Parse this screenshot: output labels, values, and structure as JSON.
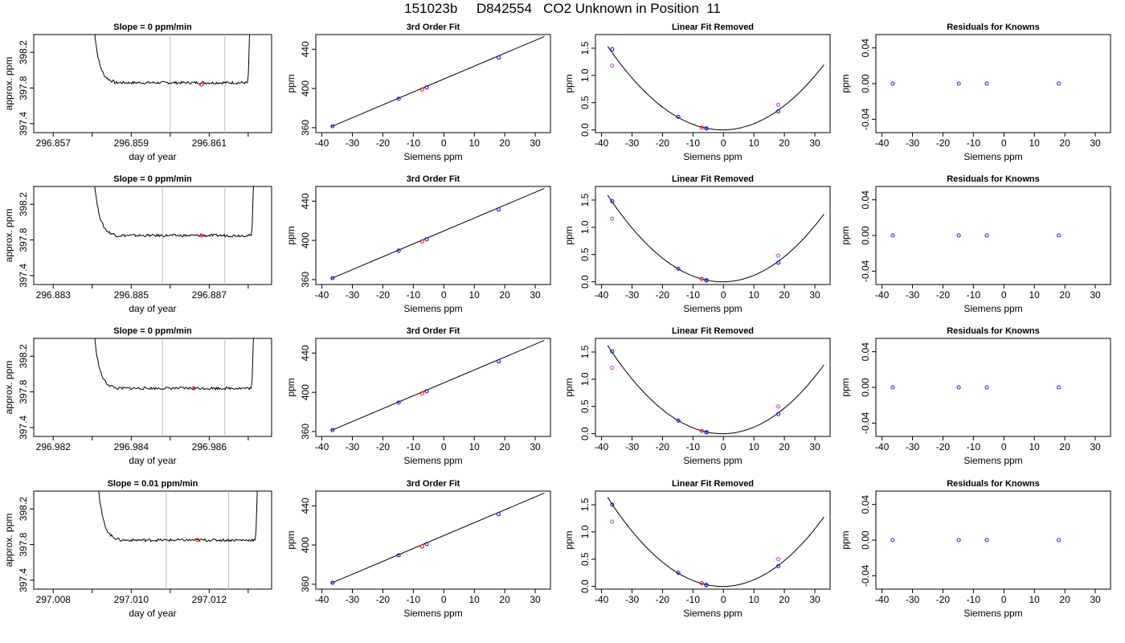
{
  "title": "151023b     D842554   CO2 Unknown in Position  11",
  "colors": {
    "known_point": "#0000ff",
    "unknown_point": "#ff0000",
    "raw_point": "#cc33cc",
    "vline": "#bbbbbb",
    "line": "#000000"
  },
  "rows": [
    {
      "trace": {
        "title": "Slope =  0  ppm/min",
        "xlabel": "day of year",
        "ylabel": "approx. ppm",
        "xlim": [
          296.8565,
          296.8626
        ],
        "ylim": [
          397.3,
          398.4
        ],
        "xticks": [
          "296.857",
          "296.859",
          "296.861"
        ],
        "xtick_values": [
          296.857,
          296.859,
          296.861
        ],
        "minor_xticks": [
          296.858,
          296.86,
          296.862
        ],
        "yticks": [
          "397.4",
          "397.8",
          "398.2"
        ],
        "ytick_values": [
          397.4,
          397.8,
          398.2
        ],
        "vlines": [
          296.86,
          296.8614
        ],
        "marker": {
          "x": 296.8608,
          "y": 397.84
        },
        "window": [
          296.858,
          296.8621
        ],
        "plateau": 397.86
      },
      "fit": {
        "title": "3rd Order Fit",
        "xlabel": "Siemens ppm",
        "ylabel": "ppm",
        "xlim": [
          -42,
          35
        ],
        "ylim": [
          355,
          455
        ],
        "xticks": [
          "-40",
          "-30",
          "-20",
          "-10",
          "0",
          "10",
          "20",
          "30"
        ],
        "xtick_values": [
          -40,
          -30,
          -20,
          -10,
          0,
          10,
          20,
          30
        ],
        "yticks": [
          "360",
          "400",
          "440"
        ],
        "ytick_values": [
          360,
          400,
          440
        ],
        "line": [
          [
            -37,
            361
          ],
          [
            33,
            453
          ]
        ],
        "knowns": [
          [
            -36.5,
            361.5
          ],
          [
            -14.8,
            389.5
          ],
          [
            -5.6,
            401
          ],
          [
            18,
            431.5
          ]
        ],
        "unknown": [
          -7.1,
          399
        ]
      },
      "resid": {
        "title": "Linear Fit Removed",
        "xlabel": "Siemens ppm",
        "ylabel": "ppm",
        "xlim": [
          -42,
          35
        ],
        "ylim": [
          -0.05,
          1.75
        ],
        "xticks": [
          "-40",
          "-30",
          "-20",
          "-10",
          "0",
          "10",
          "20",
          "30"
        ],
        "xtick_values": [
          -40,
          -30,
          -20,
          -10,
          0,
          10,
          20,
          30
        ],
        "yticks": [
          "0.0",
          "0.5",
          "1.0",
          "1.5"
        ],
        "ytick_values": [
          0,
          0.5,
          1,
          1.5
        ],
        "curve_a": 0.00108,
        "curve_x0": -0.3,
        "knowns": [
          [
            -36.5,
            1.48
          ],
          [
            -14.8,
            0.24
          ],
          [
            -5.6,
            0.03
          ],
          [
            18,
            0.34
          ]
        ],
        "raw": [
          [
            -36.5,
            1.18
          ],
          [
            -5.6,
            0.02
          ],
          [
            18,
            0.46
          ]
        ],
        "unknown": [
          -7.1,
          0.04
        ]
      },
      "known_resid": {
        "title": "Residuals for Knowns",
        "xlabel": "Siemens ppm",
        "ylabel": "ppm",
        "xlim": [
          -42,
          35
        ],
        "ylim": [
          -0.055,
          0.055
        ],
        "xticks": [
          "-40",
          "-30",
          "-20",
          "-10",
          "0",
          "10",
          "20",
          "30"
        ],
        "xtick_values": [
          -40,
          -30,
          -20,
          -10,
          0,
          10,
          20,
          30
        ],
        "yticks": [
          "-0.04",
          "0.00",
          "0.04"
        ],
        "ytick_values": [
          -0.04,
          0,
          0.04
        ],
        "points": [
          [
            -36.5,
            0
          ],
          [
            -14.8,
            0
          ],
          [
            -5.6,
            0
          ],
          [
            18,
            0
          ]
        ]
      }
    },
    {
      "trace": {
        "title": "Slope =  0  ppm/min",
        "xlabel": "day of year",
        "ylabel": "approx. ppm",
        "xlim": [
          296.8825,
          296.8886
        ],
        "ylim": [
          397.3,
          398.4
        ],
        "xticks": [
          "296.883",
          "296.885",
          "296.887"
        ],
        "xtick_values": [
          296.883,
          296.885,
          296.887
        ],
        "minor_xticks": [
          296.884,
          296.886,
          296.888
        ],
        "yticks": [
          "397.4",
          "397.8",
          "398.2"
        ],
        "ytick_values": [
          397.4,
          397.8,
          398.2
        ],
        "vlines": [
          296.8858,
          296.8874
        ],
        "marker": {
          "x": 296.8868,
          "y": 397.85
        },
        "window": [
          296.884,
          296.8882
        ],
        "plateau": 397.85
      },
      "fit": {
        "title": "3rd Order Fit",
        "xlabel": "Siemens ppm",
        "ylabel": "ppm",
        "xlim": [
          -42,
          35
        ],
        "ylim": [
          355,
          455
        ],
        "xticks": [
          "-40",
          "-30",
          "-20",
          "-10",
          "0",
          "10",
          "20",
          "30"
        ],
        "xtick_values": [
          -40,
          -30,
          -20,
          -10,
          0,
          10,
          20,
          30
        ],
        "yticks": [
          "360",
          "400",
          "440"
        ],
        "ytick_values": [
          360,
          400,
          440
        ],
        "line": [
          [
            -37,
            361
          ],
          [
            33,
            453
          ]
        ],
        "knowns": [
          [
            -36.5,
            361.5
          ],
          [
            -14.8,
            389.5
          ],
          [
            -5.6,
            401
          ],
          [
            18,
            431.5
          ]
        ],
        "unknown": [
          -7.1,
          399
        ]
      },
      "resid": {
        "title": "Linear Fit Removed",
        "xlabel": "Siemens ppm",
        "ylabel": "ppm",
        "xlim": [
          -42,
          35
        ],
        "ylim": [
          -0.05,
          1.75
        ],
        "xticks": [
          "-40",
          "-30",
          "-20",
          "-10",
          "0",
          "10",
          "20",
          "30"
        ],
        "xtick_values": [
          -40,
          -30,
          -20,
          -10,
          0,
          10,
          20,
          30
        ],
        "yticks": [
          "0.0",
          "0.5",
          "1.0",
          "1.5"
        ],
        "ytick_values": [
          0,
          0.5,
          1,
          1.5
        ],
        "curve_a": 0.00112,
        "curve_x0": -0.3,
        "knowns": [
          [
            -36.5,
            1.48
          ],
          [
            -14.8,
            0.24
          ],
          [
            -5.6,
            0.03
          ],
          [
            18,
            0.35
          ]
        ],
        "raw": [
          [
            -36.5,
            1.16
          ],
          [
            -5.6,
            0.02
          ],
          [
            18,
            0.48
          ]
        ],
        "unknown": [
          -7.1,
          0.05
        ]
      },
      "known_resid": {
        "title": "Residuals for Knowns",
        "xlabel": "Siemens ppm",
        "ylabel": "ppm",
        "xlim": [
          -42,
          35
        ],
        "ylim": [
          -0.055,
          0.055
        ],
        "xticks": [
          "-40",
          "-30",
          "-20",
          "-10",
          "0",
          "10",
          "20",
          "30"
        ],
        "xtick_values": [
          -40,
          -30,
          -20,
          -10,
          0,
          10,
          20,
          30
        ],
        "yticks": [
          "-0.04",
          "0.00",
          "0.04"
        ],
        "ytick_values": [
          -0.04,
          0,
          0.04
        ],
        "points": [
          [
            -36.5,
            0
          ],
          [
            -14.8,
            0
          ],
          [
            -5.6,
            0
          ],
          [
            18,
            0
          ]
        ]
      }
    },
    {
      "trace": {
        "title": "Slope =  0  ppm/min",
        "xlabel": "day of year",
        "ylabel": "approx. ppm",
        "xlim": [
          296.9815,
          296.9876
        ],
        "ylim": [
          397.3,
          398.4
        ],
        "xticks": [
          "296.982",
          "296.984",
          "296.986"
        ],
        "xtick_values": [
          296.982,
          296.984,
          296.986
        ],
        "minor_xticks": [
          296.983,
          296.985,
          296.987
        ],
        "yticks": [
          "397.4",
          "397.8",
          "398.2"
        ],
        "ytick_values": [
          397.4,
          397.8,
          398.2
        ],
        "vlines": [
          296.9848,
          296.9864
        ],
        "marker": {
          "x": 296.9856,
          "y": 397.84
        },
        "window": [
          296.983,
          296.9872
        ],
        "plateau": 397.84
      },
      "fit": {
        "title": "3rd Order Fit",
        "xlabel": "Siemens ppm",
        "ylabel": "ppm",
        "xlim": [
          -42,
          35
        ],
        "ylim": [
          355,
          455
        ],
        "xticks": [
          "-40",
          "-30",
          "-20",
          "-10",
          "0",
          "10",
          "20",
          "30"
        ],
        "xtick_values": [
          -40,
          -30,
          -20,
          -10,
          0,
          10,
          20,
          30
        ],
        "yticks": [
          "360",
          "400",
          "440"
        ],
        "ytick_values": [
          360,
          400,
          440
        ],
        "line": [
          [
            -37,
            361
          ],
          [
            33,
            453
          ]
        ],
        "knowns": [
          [
            -36.5,
            361.5
          ],
          [
            -14.8,
            389.5
          ],
          [
            -5.6,
            401
          ],
          [
            18,
            431.5
          ]
        ],
        "unknown": [
          -7.1,
          399
        ]
      },
      "resid": {
        "title": "Linear Fit Removed",
        "xlabel": "Siemens ppm",
        "ylabel": "ppm",
        "xlim": [
          -42,
          35
        ],
        "ylim": [
          -0.05,
          1.75
        ],
        "xticks": [
          "-40",
          "-30",
          "-20",
          "-10",
          "0",
          "10",
          "20",
          "30"
        ],
        "xtick_values": [
          -40,
          -30,
          -20,
          -10,
          0,
          10,
          20,
          30
        ],
        "yticks": [
          "0.0",
          "0.5",
          "1.0",
          "1.5"
        ],
        "ytick_values": [
          0,
          0.5,
          1,
          1.5
        ],
        "curve_a": 0.00114,
        "curve_x0": -0.3,
        "knowns": [
          [
            -36.5,
            1.51
          ],
          [
            -14.8,
            0.24
          ],
          [
            -5.6,
            0.03
          ],
          [
            18,
            0.36
          ]
        ],
        "raw": [
          [
            -36.5,
            1.21
          ],
          [
            -5.6,
            0.02
          ],
          [
            18,
            0.5
          ]
        ],
        "unknown": [
          -7.1,
          0.05
        ]
      },
      "known_resid": {
        "title": "Residuals for Knowns",
        "xlabel": "Siemens ppm",
        "ylabel": "ppm",
        "xlim": [
          -42,
          35
        ],
        "ylim": [
          -0.055,
          0.055
        ],
        "xticks": [
          "-40",
          "-30",
          "-20",
          "-10",
          "0",
          "10",
          "20",
          "30"
        ],
        "xtick_values": [
          -40,
          -30,
          -20,
          -10,
          0,
          10,
          20,
          30
        ],
        "yticks": [
          "-0.04",
          "0.00",
          "0.04"
        ],
        "ytick_values": [
          -0.04,
          0,
          0.04
        ],
        "points": [
          [
            -36.5,
            0
          ],
          [
            -14.8,
            0
          ],
          [
            -5.6,
            0
          ],
          [
            18,
            0
          ]
        ]
      }
    },
    {
      "trace": {
        "title": "Slope =  0.01  ppm/min",
        "xlabel": "day of year",
        "ylabel": "approx. ppm",
        "xlim": [
          297.0075,
          297.0136
        ],
        "ylim": [
          397.3,
          398.4
        ],
        "xticks": [
          "297.008",
          "297.010",
          "297.012"
        ],
        "xtick_values": [
          297.008,
          297.01,
          297.012
        ],
        "minor_xticks": [
          297.009,
          297.011,
          297.013
        ],
        "yticks": [
          "397.4",
          "397.8",
          "398.2"
        ],
        "ytick_values": [
          397.4,
          397.8,
          398.2
        ],
        "vlines": [
          297.0109,
          297.0125
        ],
        "marker": {
          "x": 297.0117,
          "y": 397.85
        },
        "window": [
          297.0091,
          297.0133
        ],
        "plateau": 397.85
      },
      "fit": {
        "title": "3rd Order Fit",
        "xlabel": "Siemens ppm",
        "ylabel": "ppm",
        "xlim": [
          -42,
          35
        ],
        "ylim": [
          355,
          455
        ],
        "xticks": [
          "-40",
          "-30",
          "-20",
          "-10",
          "0",
          "10",
          "20",
          "30"
        ],
        "xtick_values": [
          -40,
          -30,
          -20,
          -10,
          0,
          10,
          20,
          30
        ],
        "yticks": [
          "360",
          "400",
          "440"
        ],
        "ytick_values": [
          360,
          400,
          440
        ],
        "line": [
          [
            -37,
            361
          ],
          [
            33,
            453
          ]
        ],
        "knowns": [
          [
            -36.5,
            361.5
          ],
          [
            -14.8,
            389.5
          ],
          [
            -5.6,
            401
          ],
          [
            18,
            431.5
          ]
        ],
        "unknown": [
          -7.1,
          398.5
        ]
      },
      "resid": {
        "title": "Linear Fit Removed",
        "xlabel": "Siemens ppm",
        "ylabel": "ppm",
        "xlim": [
          -42,
          35
        ],
        "ylim": [
          -0.05,
          1.75
        ],
        "xticks": [
          "-40",
          "-30",
          "-20",
          "-10",
          "0",
          "10",
          "20",
          "30"
        ],
        "xtick_values": [
          -40,
          -30,
          -20,
          -10,
          0,
          10,
          20,
          30
        ],
        "yticks": [
          "0.0",
          "0.5",
          "1.0",
          "1.5"
        ],
        "ytick_values": [
          0,
          0.5,
          1,
          1.5
        ],
        "curve_a": 0.00115,
        "curve_x0": -0.3,
        "knowns": [
          [
            -36.5,
            1.5
          ],
          [
            -14.8,
            0.25
          ],
          [
            -5.6,
            0.03
          ],
          [
            18,
            0.37
          ]
        ],
        "raw": [
          [
            -36.5,
            1.19
          ],
          [
            -5.6,
            0.02
          ],
          [
            18,
            0.5
          ]
        ],
        "unknown": [
          -7.1,
          0.06
        ]
      },
      "known_resid": {
        "title": "Residuals for Knowns",
        "xlabel": "Siemens ppm",
        "ylabel": "ppm",
        "xlim": [
          -42,
          35
        ],
        "ylim": [
          -0.055,
          0.055
        ],
        "xticks": [
          "-40",
          "-30",
          "-20",
          "-10",
          "0",
          "10",
          "20",
          "30"
        ],
        "xtick_values": [
          -40,
          -30,
          -20,
          -10,
          0,
          10,
          20,
          30
        ],
        "yticks": [
          "-0.04",
          "0.00",
          "0.04"
        ],
        "ytick_values": [
          -0.04,
          0,
          0.04
        ],
        "points": [
          [
            -36.5,
            0
          ],
          [
            -14.8,
            0
          ],
          [
            -5.6,
            0
          ],
          [
            18,
            0
          ]
        ]
      }
    }
  ],
  "chart_data": {
    "type": "scatter",
    "title": "151023b     D842554   CO2 Unknown in Position  11",
    "panels_per_row": [
      "Slope",
      "3rd Order Fit",
      "Linear Fit Removed",
      "Residuals for Knowns"
    ],
    "series": [
      {
        "name": "knowns",
        "x": [
          -36.5,
          -14.8,
          -5.6,
          18
        ],
        "y": [
          361.5,
          389.5,
          401,
          431.5
        ]
      },
      {
        "name": "unknown",
        "x": [
          -7.1
        ],
        "y": [
          399
        ]
      }
    ],
    "xlabel": "Siemens ppm",
    "ylabel": "ppm"
  }
}
